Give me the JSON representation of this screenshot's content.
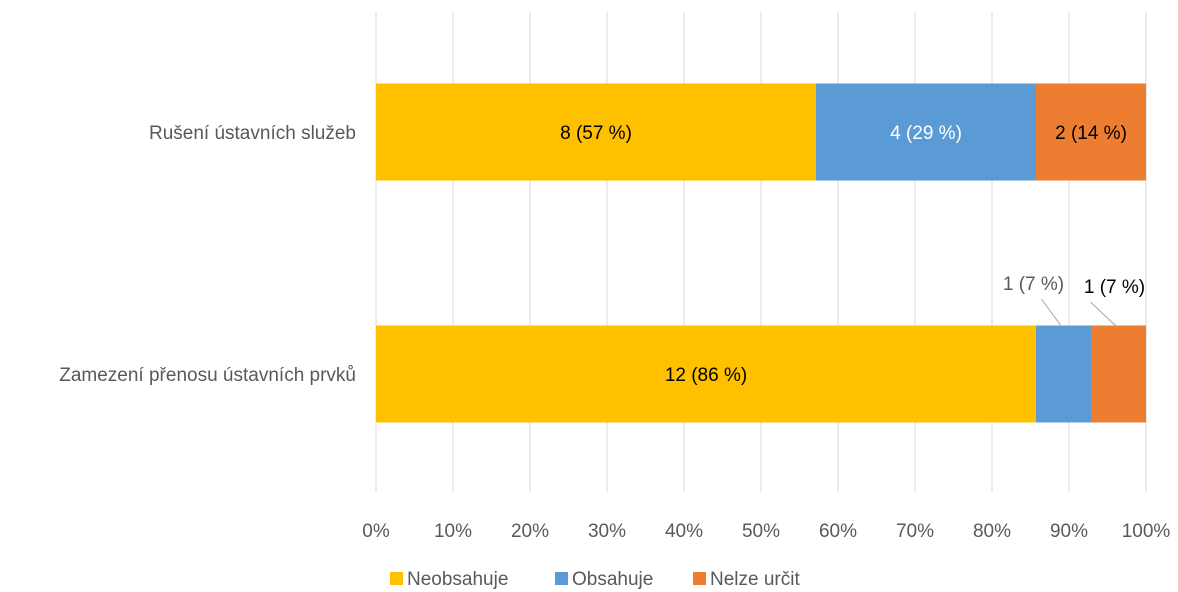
{
  "chart_data": {
    "type": "bar",
    "orientation": "horizontal",
    "stacked": "percent",
    "categories": [
      "Rušení ústavních služeb",
      "Zamezení přenosu ústavních prvků"
    ],
    "series": [
      {
        "name": "Neobsahuje",
        "color": "#FFC000",
        "values": [
          8,
          12
        ],
        "labels": [
          "8 (57 %)",
          "12 (86 %)"
        ]
      },
      {
        "name": "Obsahuje",
        "color": "#5B9BD5",
        "values": [
          4,
          1
        ],
        "labels": [
          "4 (29 %)",
          "1 (7 %)"
        ]
      },
      {
        "name": "Nelze určit",
        "color": "#ED7D31",
        "values": [
          2,
          1
        ],
        "labels": [
          "2 (14 %)",
          "1 (7 %)"
        ]
      }
    ],
    "xlim": [
      0,
      100
    ],
    "x_ticks": [
      "0%",
      "10%",
      "20%",
      "30%",
      "40%",
      "50%",
      "60%",
      "70%",
      "80%",
      "90%",
      "100%"
    ],
    "grid": true,
    "legend": "bottom"
  }
}
